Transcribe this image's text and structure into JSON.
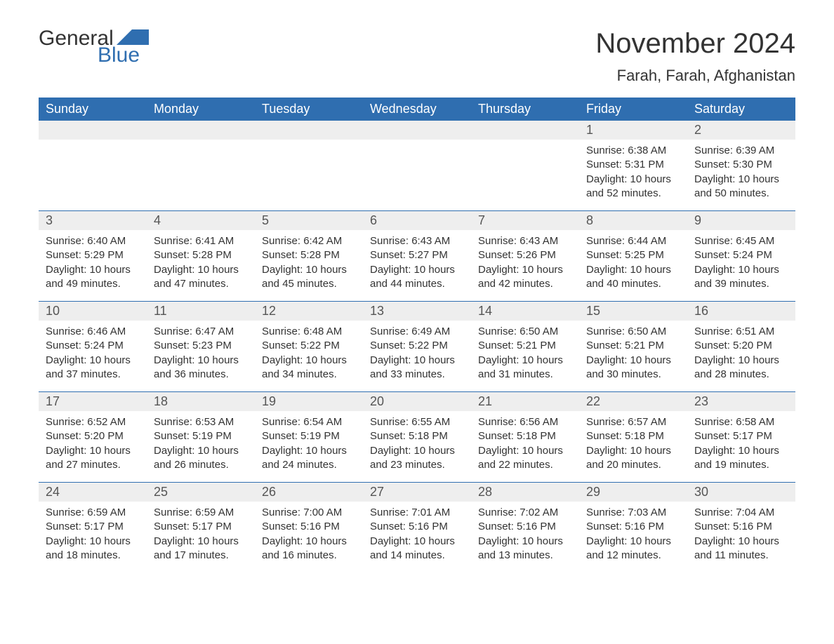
{
  "logo": {
    "text_general": "General",
    "text_blue": "Blue",
    "shape_color": "#2f6eb0"
  },
  "title": "November 2024",
  "subtitle": "Farah, Farah, Afghanistan",
  "colors": {
    "header_bg": "#2f6eb0",
    "header_text": "#ffffff",
    "daynum_bg": "#eeeeee",
    "daynum_text": "#555555",
    "body_text": "#333333",
    "rule": "#2f6eb0",
    "background": "#ffffff"
  },
  "typography": {
    "title_fontsize": 40,
    "subtitle_fontsize": 22,
    "header_fontsize": 18,
    "daynum_fontsize": 18,
    "content_fontsize": 15,
    "font_family": "Arial"
  },
  "layout": {
    "columns": 7,
    "rows": 5,
    "first_day_column_index": 5
  },
  "weekdays": [
    "Sunday",
    "Monday",
    "Tuesday",
    "Wednesday",
    "Thursday",
    "Friday",
    "Saturday"
  ],
  "days": [
    {
      "n": "1",
      "sunrise": "6:38 AM",
      "sunset": "5:31 PM",
      "daylight": "10 hours and 52 minutes."
    },
    {
      "n": "2",
      "sunrise": "6:39 AM",
      "sunset": "5:30 PM",
      "daylight": "10 hours and 50 minutes."
    },
    {
      "n": "3",
      "sunrise": "6:40 AM",
      "sunset": "5:29 PM",
      "daylight": "10 hours and 49 minutes."
    },
    {
      "n": "4",
      "sunrise": "6:41 AM",
      "sunset": "5:28 PM",
      "daylight": "10 hours and 47 minutes."
    },
    {
      "n": "5",
      "sunrise": "6:42 AM",
      "sunset": "5:28 PM",
      "daylight": "10 hours and 45 minutes."
    },
    {
      "n": "6",
      "sunrise": "6:43 AM",
      "sunset": "5:27 PM",
      "daylight": "10 hours and 44 minutes."
    },
    {
      "n": "7",
      "sunrise": "6:43 AM",
      "sunset": "5:26 PM",
      "daylight": "10 hours and 42 minutes."
    },
    {
      "n": "8",
      "sunrise": "6:44 AM",
      "sunset": "5:25 PM",
      "daylight": "10 hours and 40 minutes."
    },
    {
      "n": "9",
      "sunrise": "6:45 AM",
      "sunset": "5:24 PM",
      "daylight": "10 hours and 39 minutes."
    },
    {
      "n": "10",
      "sunrise": "6:46 AM",
      "sunset": "5:24 PM",
      "daylight": "10 hours and 37 minutes."
    },
    {
      "n": "11",
      "sunrise": "6:47 AM",
      "sunset": "5:23 PM",
      "daylight": "10 hours and 36 minutes."
    },
    {
      "n": "12",
      "sunrise": "6:48 AM",
      "sunset": "5:22 PM",
      "daylight": "10 hours and 34 minutes."
    },
    {
      "n": "13",
      "sunrise": "6:49 AM",
      "sunset": "5:22 PM",
      "daylight": "10 hours and 33 minutes."
    },
    {
      "n": "14",
      "sunrise": "6:50 AM",
      "sunset": "5:21 PM",
      "daylight": "10 hours and 31 minutes."
    },
    {
      "n": "15",
      "sunrise": "6:50 AM",
      "sunset": "5:21 PM",
      "daylight": "10 hours and 30 minutes."
    },
    {
      "n": "16",
      "sunrise": "6:51 AM",
      "sunset": "5:20 PM",
      "daylight": "10 hours and 28 minutes."
    },
    {
      "n": "17",
      "sunrise": "6:52 AM",
      "sunset": "5:20 PM",
      "daylight": "10 hours and 27 minutes."
    },
    {
      "n": "18",
      "sunrise": "6:53 AM",
      "sunset": "5:19 PM",
      "daylight": "10 hours and 26 minutes."
    },
    {
      "n": "19",
      "sunrise": "6:54 AM",
      "sunset": "5:19 PM",
      "daylight": "10 hours and 24 minutes."
    },
    {
      "n": "20",
      "sunrise": "6:55 AM",
      "sunset": "5:18 PM",
      "daylight": "10 hours and 23 minutes."
    },
    {
      "n": "21",
      "sunrise": "6:56 AM",
      "sunset": "5:18 PM",
      "daylight": "10 hours and 22 minutes."
    },
    {
      "n": "22",
      "sunrise": "6:57 AM",
      "sunset": "5:18 PM",
      "daylight": "10 hours and 20 minutes."
    },
    {
      "n": "23",
      "sunrise": "6:58 AM",
      "sunset": "5:17 PM",
      "daylight": "10 hours and 19 minutes."
    },
    {
      "n": "24",
      "sunrise": "6:59 AM",
      "sunset": "5:17 PM",
      "daylight": "10 hours and 18 minutes."
    },
    {
      "n": "25",
      "sunrise": "6:59 AM",
      "sunset": "5:17 PM",
      "daylight": "10 hours and 17 minutes."
    },
    {
      "n": "26",
      "sunrise": "7:00 AM",
      "sunset": "5:16 PM",
      "daylight": "10 hours and 16 minutes."
    },
    {
      "n": "27",
      "sunrise": "7:01 AM",
      "sunset": "5:16 PM",
      "daylight": "10 hours and 14 minutes."
    },
    {
      "n": "28",
      "sunrise": "7:02 AM",
      "sunset": "5:16 PM",
      "daylight": "10 hours and 13 minutes."
    },
    {
      "n": "29",
      "sunrise": "7:03 AM",
      "sunset": "5:16 PM",
      "daylight": "10 hours and 12 minutes."
    },
    {
      "n": "30",
      "sunrise": "7:04 AM",
      "sunset": "5:16 PM",
      "daylight": "10 hours and 11 minutes."
    }
  ],
  "labels": {
    "sunrise": "Sunrise: ",
    "sunset": "Sunset: ",
    "daylight": "Daylight: "
  }
}
